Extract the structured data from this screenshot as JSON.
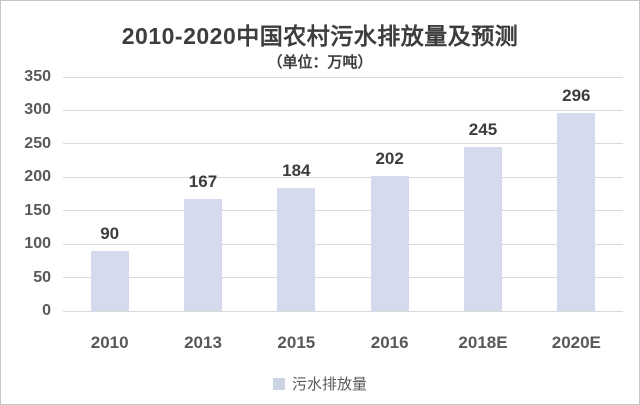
{
  "chart_data": {
    "type": "bar",
    "title": "2010-2020中国农村污水排放量及预测",
    "subtitle": "（单位：万吨）",
    "categories": [
      "2010",
      "2013",
      "2015",
      "2016",
      "2018E",
      "2020E"
    ],
    "values": [
      90,
      167,
      184,
      202,
      245,
      296
    ],
    "legend": "污水排放量",
    "xlabel": "",
    "ylabel": "",
    "ylim": [
      0,
      350
    ],
    "yticks": [
      0,
      50,
      100,
      150,
      200,
      250,
      300,
      350
    ],
    "grid": true,
    "legend_position": "bottom",
    "colors": {
      "bar": "#d5dbec",
      "legend_swatch": "#ccd4e3",
      "grid": "#dadada",
      "title_text": "#3d3d3d",
      "axis_text": "#595959",
      "value_label_text": "#3d3d3d",
      "frame_border": "#c6c6c6",
      "background": "#ffffff"
    }
  }
}
